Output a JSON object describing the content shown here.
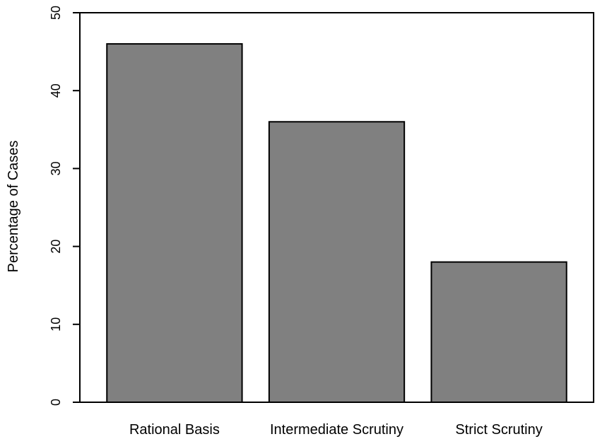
{
  "chart_data": {
    "type": "bar",
    "categories": [
      "Rational Basis",
      "Intermediate Scrutiny",
      "Strict Scrutiny"
    ],
    "values": [
      46,
      36,
      18
    ],
    "title": "",
    "xlabel": "",
    "ylabel": "Percentage of Cases",
    "ylim": [
      0,
      50
    ],
    "yticks": [
      0,
      10,
      20,
      30,
      40,
      50
    ],
    "bar_color": "#808080",
    "grid": false,
    "legend": "none"
  }
}
